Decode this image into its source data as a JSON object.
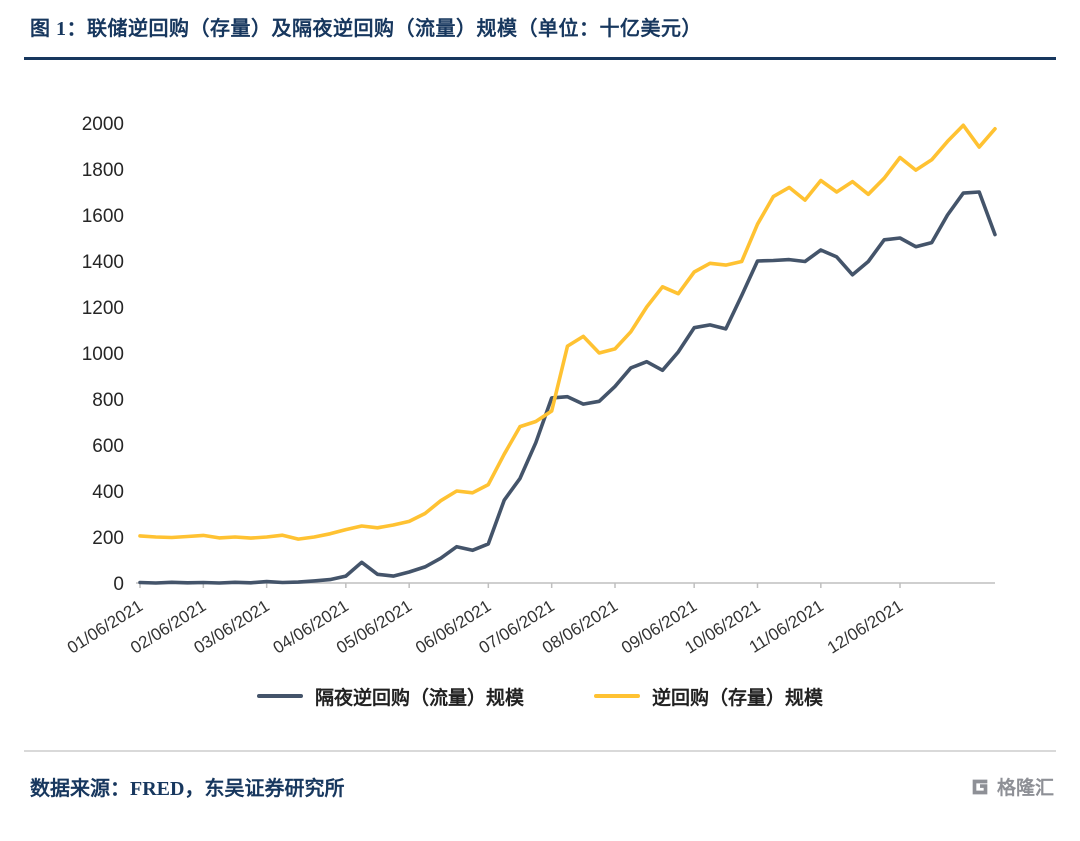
{
  "header": {
    "title": "图 1：联储逆回购（存量）及隔夜逆回购（流量）规模（单位：十亿美元）"
  },
  "footer": {
    "source_note": "数据来源：FRED，东吴证券研究所",
    "logo_text": "格隆汇"
  },
  "colors": {
    "title_navy": "#17375E",
    "flow_line": "#44546A",
    "stock_line": "#FFC232",
    "axis_line": "#BFBFBF",
    "divider_gray": "#D9D9D9"
  },
  "chart_data": {
    "type": "line",
    "title": "联储逆回购（存量）及隔夜逆回购（流量）规模",
    "unit": "十亿美元",
    "grid": false,
    "legend_position": "bottom",
    "ylim": [
      0,
      2000
    ],
    "yticks": [
      0,
      200,
      400,
      600,
      800,
      1000,
      1200,
      1400,
      1600,
      1800,
      2000
    ],
    "x_tick_labels": [
      "01/06/2021",
      "02/06/2021",
      "03/06/2021",
      "04/06/2021",
      "05/06/2021",
      "06/06/2021",
      "07/06/2021",
      "08/06/2021",
      "09/06/2021",
      "10/06/2021",
      "11/06/2021",
      "12/06/2021"
    ],
    "x_tick_indices": [
      0,
      4,
      8,
      13,
      17,
      22,
      26,
      30,
      35,
      39,
      43,
      48
    ],
    "series": [
      {
        "name": "隔夜逆回购（流量）规模",
        "color": "#44546A",
        "values": [
          2,
          0,
          3,
          1,
          2,
          0,
          3,
          1,
          6,
          2,
          4,
          9,
          15,
          30,
          90,
          38,
          30,
          48,
          70,
          108,
          158,
          142,
          170,
          360,
          455,
          610,
          805,
          810,
          778,
          790,
          855,
          935,
          962,
          925,
          1005,
          1110,
          1122,
          1105,
          1250,
          1400,
          1402,
          1406,
          1398,
          1448,
          1418,
          1340,
          1398,
          1492,
          1500,
          1462,
          1480,
          1600,
          1695,
          1700,
          1515
        ]
      },
      {
        "name": "逆回购（存量）规模",
        "color": "#FFC232",
        "values": [
          205,
          200,
          198,
          202,
          207,
          196,
          200,
          195,
          200,
          208,
          191,
          200,
          214,
          232,
          248,
          240,
          252,
          268,
          302,
          358,
          400,
          392,
          428,
          560,
          680,
          702,
          748,
          1030,
          1072,
          1000,
          1018,
          1092,
          1200,
          1288,
          1258,
          1352,
          1390,
          1382,
          1398,
          1560,
          1680,
          1720,
          1665,
          1750,
          1700,
          1745,
          1690,
          1760,
          1850,
          1795,
          1840,
          1920,
          1990,
          1895,
          1975
        ]
      }
    ]
  }
}
